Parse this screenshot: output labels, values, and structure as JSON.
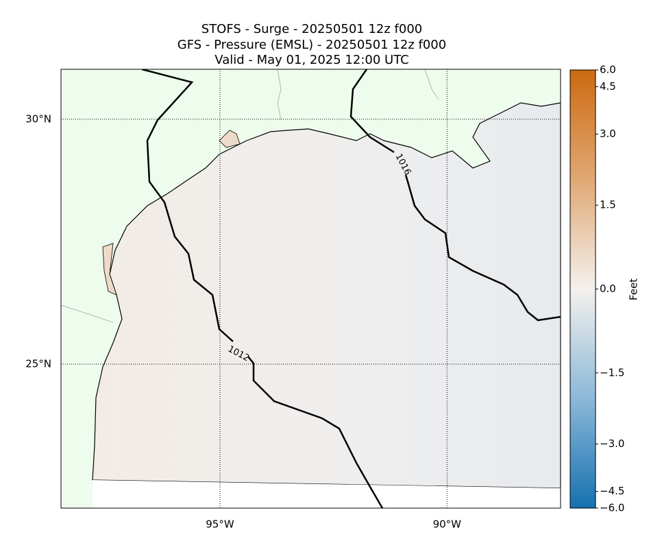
{
  "map": {
    "title_lines": [
      "STOFS - Surge - 20250501 12z f000",
      "GFS -  Pressure (EMSL) - 20250501 12z f000",
      "Valid - May 01, 2025 12:00 UTC"
    ],
    "xlim": [
      -98.5,
      -87.5
    ],
    "ylim": [
      22.06,
      31.02
    ],
    "xticks": [
      {
        "value": -95,
        "label": "95°W"
      },
      {
        "value": -90,
        "label": "90°W"
      }
    ],
    "yticks": [
      {
        "value": 30,
        "label": "30°N"
      },
      {
        "value": 25,
        "label": "25°N"
      }
    ],
    "contours": [
      {
        "label": 1012
      },
      {
        "label": 1016
      }
    ],
    "colorbar": {
      "label": "Feet",
      "lim": [
        -6,
        6
      ],
      "ticks": [
        {
          "value": 6,
          "label": "6.0"
        },
        {
          "value": 4.5,
          "label": "4.5"
        },
        {
          "value": 3,
          "label": "3.0"
        },
        {
          "value": 1.5,
          "label": "1.5"
        },
        {
          "value": 0,
          "label": "0.0"
        },
        {
          "value": -1.5,
          "label": "−1.5"
        },
        {
          "value": -3,
          "label": "−3.0"
        },
        {
          "value": -4.5,
          "label": "−4.5"
        },
        {
          "value": -6,
          "label": "−6.0"
        }
      ]
    }
  }
}
